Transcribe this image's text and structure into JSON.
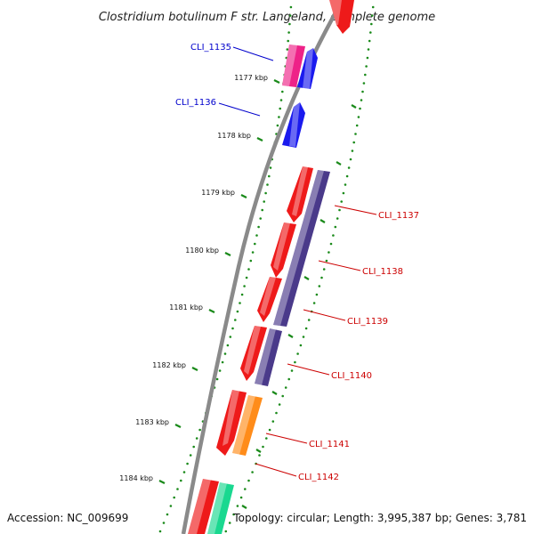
{
  "title": "Clostridium botulinum F str. Langeland, complete genome",
  "footer": {
    "accession": "Accession: NC_009699",
    "stats": "Topology: circular; Length: 3,995,387 bp; Genes: 3,781"
  },
  "colors": {
    "backbone": "#808080",
    "dot_track": "#1a8a1a",
    "tick": "#1a8a1a",
    "label_blue": "#0000cc",
    "label_red": "#cc0000"
  },
  "ticks": [
    {
      "label": "1177 kbp"
    },
    {
      "label": "1178 kbp"
    },
    {
      "label": "1179 kbp"
    },
    {
      "label": "1180 kbp"
    },
    {
      "label": "1181 kbp"
    },
    {
      "label": "1182 kbp"
    },
    {
      "label": "1183 kbp"
    },
    {
      "label": "1184 kbp"
    }
  ],
  "genes": [
    {
      "id": "CLI_1135",
      "strand": "forward",
      "label_color": "blue",
      "fill": "#1a1aee"
    },
    {
      "id": "CLI_1136",
      "strand": "forward",
      "label_color": "blue",
      "fill": "#1a1aee"
    },
    {
      "id": "CLI_1137",
      "strand": "reverse",
      "label_color": "red",
      "fill": "#ee1a1a"
    },
    {
      "id": "CLI_1138",
      "strand": "reverse",
      "label_color": "red",
      "fill": "#ee1a1a"
    },
    {
      "id": "CLI_1139",
      "strand": "reverse",
      "label_color": "red",
      "fill": "#ee1a1a"
    },
    {
      "id": "CLI_1140",
      "strand": "reverse",
      "label_color": "red",
      "fill": "#ee1a1a"
    },
    {
      "id": "CLI_1141",
      "strand": "reverse",
      "label_color": "red",
      "fill": "#ee1a1a"
    },
    {
      "id": "CLI_1142",
      "strand": "reverse",
      "label_color": "red",
      "fill": "#ee1a1a"
    }
  ]
}
